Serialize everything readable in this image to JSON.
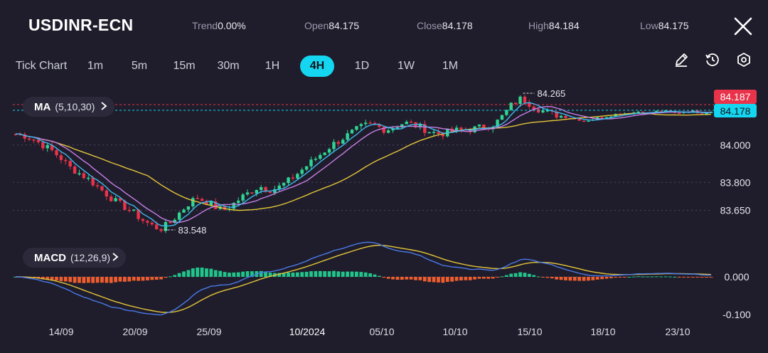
{
  "header": {
    "symbol": "USDINR-ECN",
    "stats": [
      {
        "label": "Trend",
        "value": "0.00%"
      },
      {
        "label": "Open",
        "value": "84.175"
      },
      {
        "label": "Close",
        "value": "84.178"
      },
      {
        "label": "High",
        "value": "84.184"
      },
      {
        "label": "Low",
        "value": "84.175"
      }
    ]
  },
  "timeframes": [
    "Tick Chart",
    "1m",
    "5m",
    "15m",
    "30m",
    "1H",
    "4H",
    "1D",
    "1W",
    "1M"
  ],
  "active_timeframe": "4H",
  "toolbar": [
    "draw-icon",
    "clock-icon",
    "settings-icon"
  ],
  "indicators": {
    "ma": {
      "label": "MA",
      "params": "(5,10,30)"
    },
    "macd": {
      "label": "MACD",
      "params": "(12,26,9)"
    }
  },
  "colors": {
    "background": "#1f1d2b",
    "up": "#2fd592",
    "down": "#e8334a",
    "accent": "#15d6f0",
    "ma5": "#3fb7ee",
    "ma10": "#c77ee6",
    "ma30": "#e3c53a",
    "macd_dif": "#4a78e6",
    "macd_dea": "#e3c53a",
    "hist_pos": "#21c48a",
    "hist_neg": "#ef5d2e"
  },
  "chart_data": {
    "type": "candlestick",
    "price_axis": {
      "ticks": [
        "84.000",
        "83.800",
        "83.650"
      ],
      "ylim": [
        83.5,
        84.3
      ]
    },
    "macd_axis": {
      "ticks": [
        "0.000",
        "-0.100"
      ]
    },
    "x_ticks": [
      "14/09",
      "20/09",
      "25/09",
      "10/2024",
      "05/10",
      "10/10",
      "15/10",
      "18/10",
      "23/10"
    ],
    "markers": {
      "high": "84.265",
      "low": "83.548"
    },
    "price_labels": {
      "ask": "84.187",
      "last": "84.178"
    },
    "ohlc_anchor_closes": [
      84.06,
      84.05,
      84.03,
      84.0,
      83.97,
      83.93,
      83.88,
      83.85,
      83.82,
      83.78,
      83.74,
      83.7,
      83.67,
      83.64,
      83.6,
      83.57,
      83.55,
      83.58,
      83.63,
      83.68,
      83.72,
      83.7,
      83.67,
      83.65,
      83.68,
      83.72,
      83.75,
      83.78,
      83.76,
      83.77,
      83.8,
      83.84,
      83.88,
      83.92,
      83.96,
      84.0,
      84.03,
      84.06,
      84.09,
      84.11,
      84.1,
      84.08,
      84.1,
      84.12,
      84.11,
      84.09,
      84.07,
      84.06,
      84.07,
      84.08,
      84.08,
      84.09,
      84.1,
      84.11,
      84.16,
      84.22,
      84.25,
      84.22,
      84.19,
      84.17,
      84.16,
      84.15,
      84.14,
      84.13,
      84.14,
      84.15,
      84.16,
      84.17,
      84.17,
      84.18,
      84.17,
      84.18,
      84.18,
      84.17,
      84.18,
      84.18,
      84.17,
      84.18
    ]
  }
}
